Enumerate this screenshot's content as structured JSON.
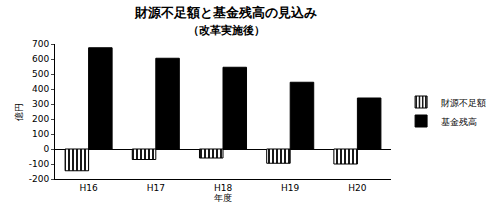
{
  "chart_data": {
    "type": "bar",
    "title": "財源不足額と基金残高の見込み",
    "subtitle": "（改革実施後）",
    "x_label": "年度",
    "y_label": "億円",
    "categories": [
      "H16",
      "H17",
      "H18",
      "H19",
      "H20"
    ],
    "series": [
      {
        "name": "財源不足額",
        "color": "#000000",
        "marker": "hatched",
        "values": [
          -145,
          -70,
          -60,
          -95,
          -100
        ]
      },
      {
        "name": "基金残高",
        "color": "#000000",
        "values": [
          675,
          605,
          545,
          445,
          340
        ]
      }
    ],
    "ylim": [
      -200,
      700
    ],
    "yticks": [
      -200,
      -100,
      0,
      100,
      200,
      300,
      400,
      500,
      600,
      700
    ],
    "grid": false,
    "legend": "right"
  }
}
